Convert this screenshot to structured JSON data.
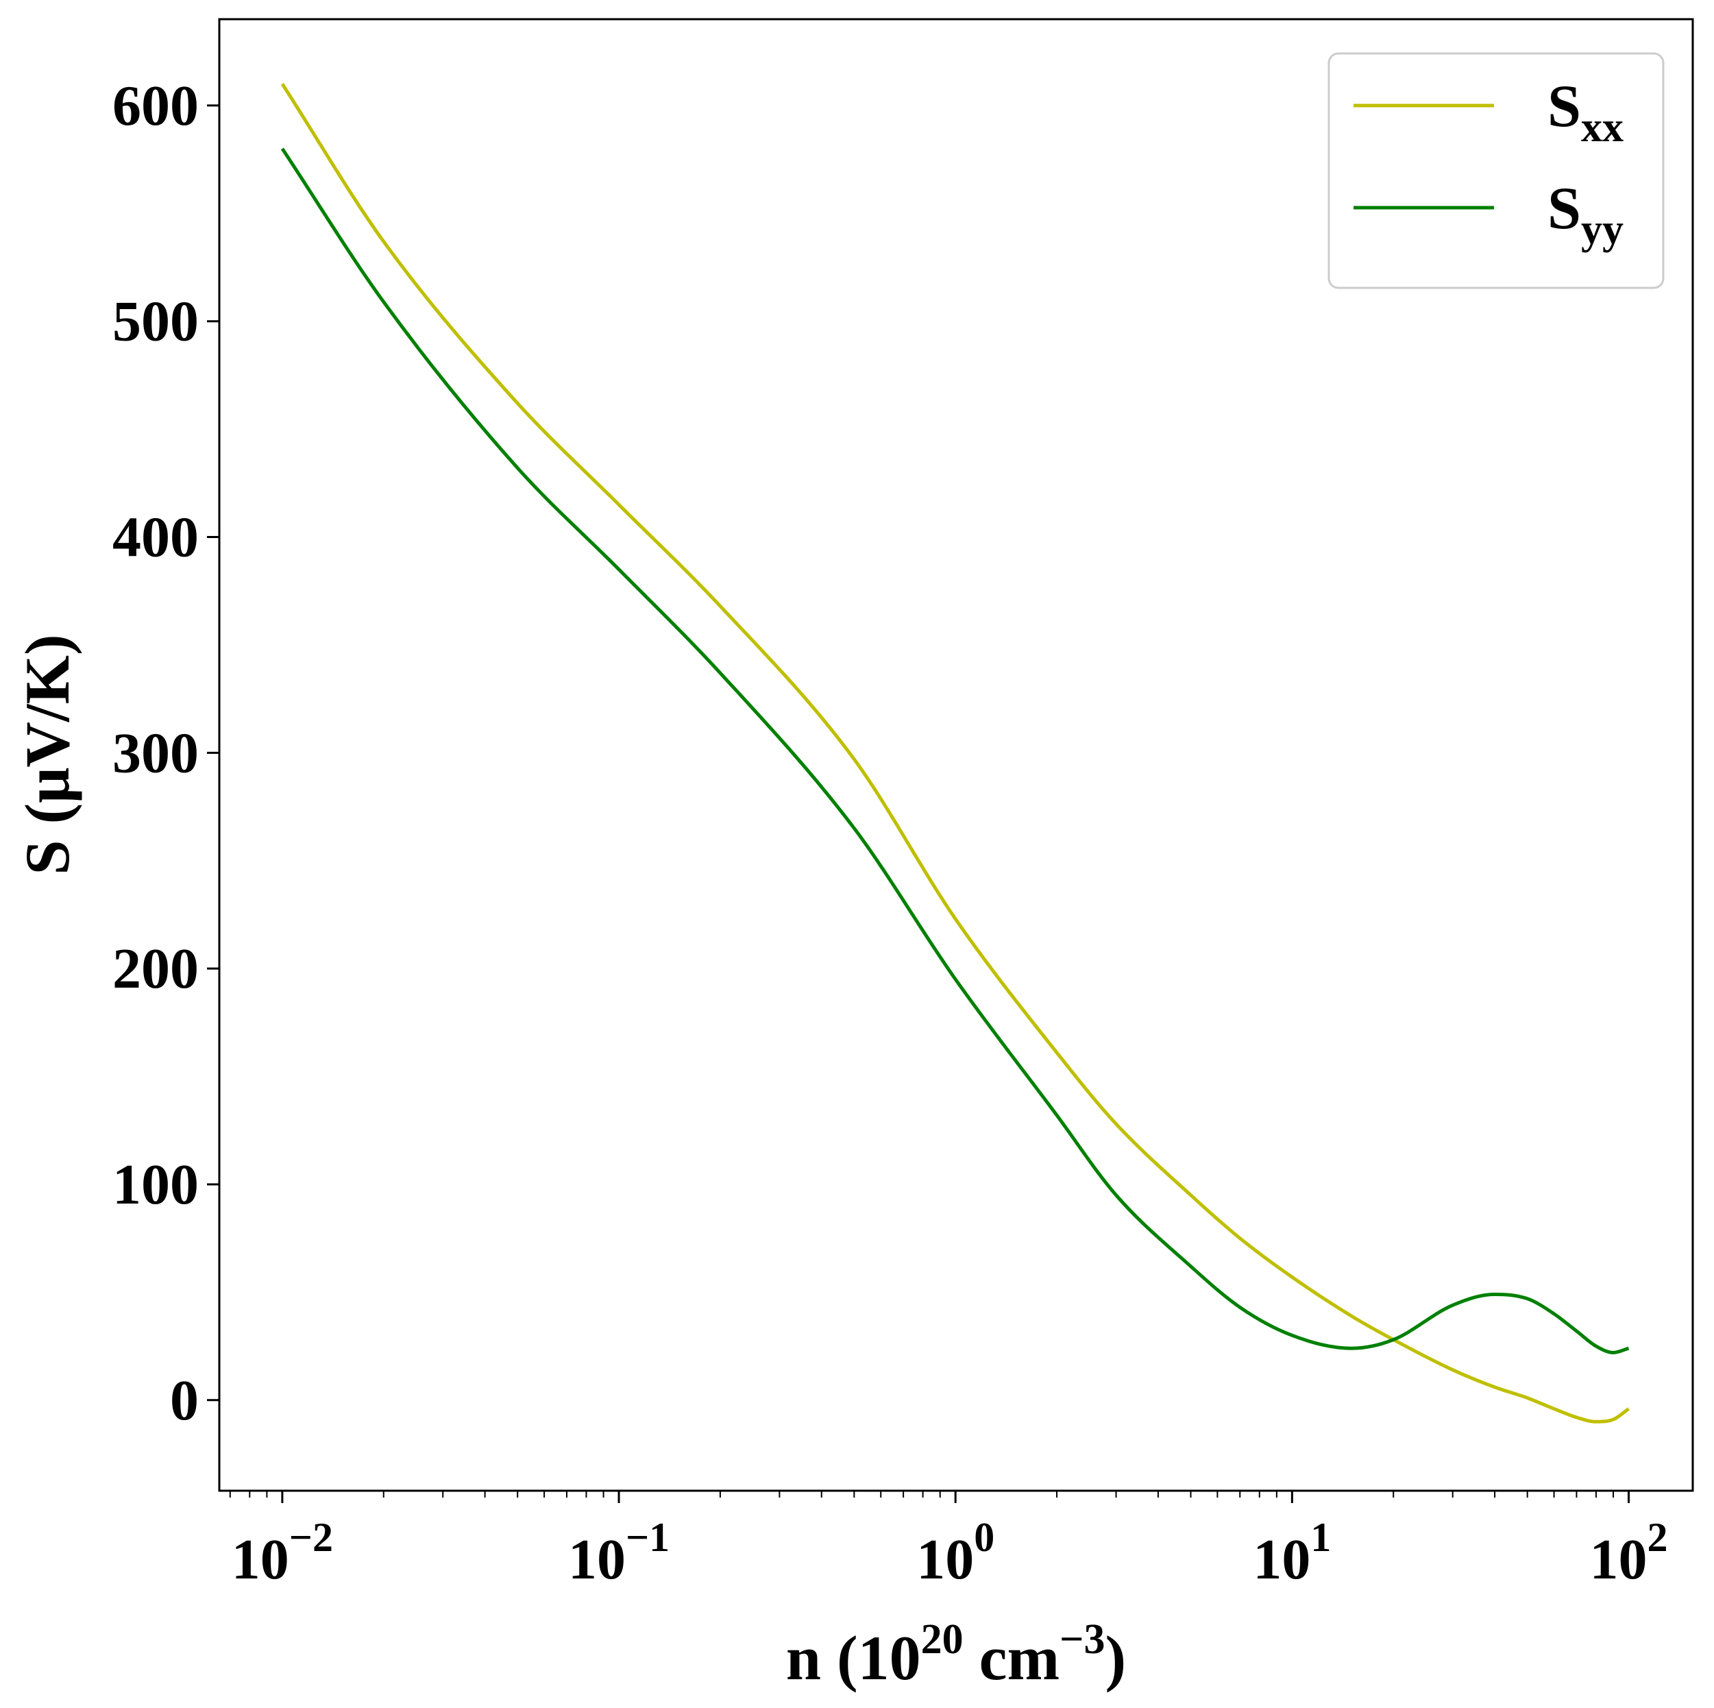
{
  "chart_data": {
    "type": "line",
    "xlabel": "n (10²⁰ cm⁻³)",
    "xlabel_parts": {
      "prefix": "n (10",
      "exp1": "20",
      "mid": " cm",
      "exp2": "−3",
      "suffix": ")"
    },
    "ylabel": "S (μV/K)",
    "x_scale": "log",
    "xlim": [
      0.0065,
      155
    ],
    "ylim": [
      -42,
      640
    ],
    "x_ticks": [
      {
        "value": 0.01,
        "base": "10",
        "exp": "−2"
      },
      {
        "value": 0.1,
        "base": "10",
        "exp": "−1"
      },
      {
        "value": 1,
        "base": "10",
        "exp": "0"
      },
      {
        "value": 10,
        "base": "10",
        "exp": "1"
      },
      {
        "value": 100,
        "base": "10",
        "exp": "2"
      }
    ],
    "y_ticks": [
      0,
      100,
      200,
      300,
      400,
      500,
      600
    ],
    "y_tick_labels": [
      "0",
      "100",
      "200",
      "300",
      "400",
      "500",
      "600"
    ],
    "grid": false,
    "legend_position": "top-right",
    "series": [
      {
        "name": "S",
        "name_sub": "xx",
        "color": "#bfbf00",
        "points": [
          [
            0.01,
            610
          ],
          [
            0.02,
            537
          ],
          [
            0.05,
            462
          ],
          [
            0.1,
            415
          ],
          [
            0.2,
            368
          ],
          [
            0.5,
            297
          ],
          [
            1,
            223
          ],
          [
            2,
            161
          ],
          [
            3,
            128
          ],
          [
            5,
            95
          ],
          [
            7,
            75
          ],
          [
            10,
            57
          ],
          [
            15,
            39
          ],
          [
            20,
            28
          ],
          [
            30,
            14
          ],
          [
            40,
            6
          ],
          [
            50,
            1
          ],
          [
            60,
            -4
          ],
          [
            70,
            -8
          ],
          [
            80,
            -10
          ],
          [
            90,
            -9
          ],
          [
            100,
            -4
          ]
        ]
      },
      {
        "name": "S",
        "name_sub": "yy",
        "color": "#008000",
        "points": [
          [
            0.01,
            580
          ],
          [
            0.02,
            509
          ],
          [
            0.05,
            432
          ],
          [
            0.1,
            385
          ],
          [
            0.2,
            337
          ],
          [
            0.5,
            265
          ],
          [
            1,
            195
          ],
          [
            2,
            132
          ],
          [
            3,
            95
          ],
          [
            5,
            62
          ],
          [
            7,
            43
          ],
          [
            10,
            30
          ],
          [
            15,
            24
          ],
          [
            20,
            28
          ],
          [
            30,
            44
          ],
          [
            40,
            49
          ],
          [
            50,
            47
          ],
          [
            60,
            40
          ],
          [
            70,
            32
          ],
          [
            80,
            25
          ],
          [
            90,
            22
          ],
          [
            100,
            24
          ]
        ]
      }
    ]
  }
}
